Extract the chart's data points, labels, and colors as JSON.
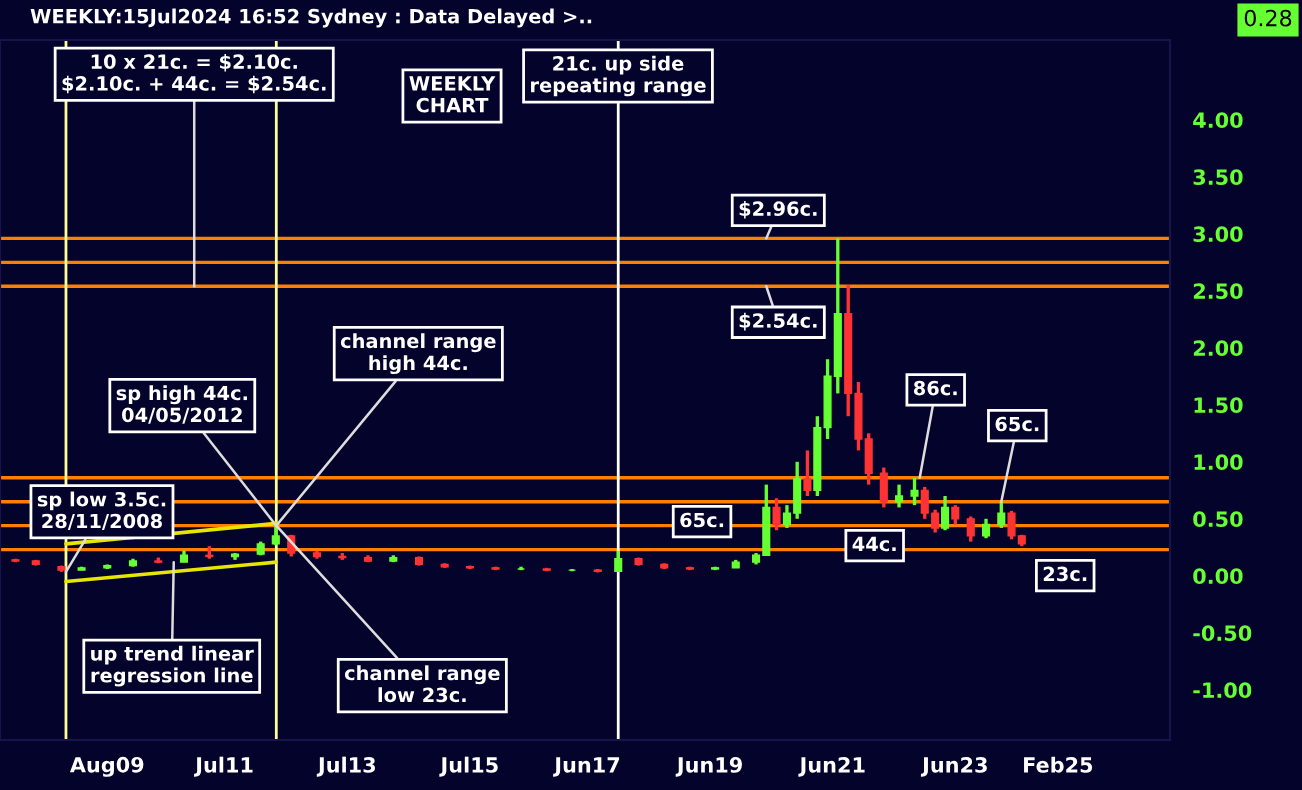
{
  "chart_data": {
    "type": "candlestick",
    "title": "WEEKLY:15Jul2024 16:52 Sydney : Data Delayed >..",
    "x": [
      "2008-02",
      "2008-06",
      "2008-11",
      "2009-03",
      "2009-08",
      "2010-01",
      "2010-06",
      "2010-11",
      "2011-04",
      "2011-09",
      "2012-02",
      "2012-05",
      "2012-08",
      "2013-01",
      "2013-06",
      "2013-11",
      "2014-04",
      "2014-09",
      "2015-02",
      "2015-07",
      "2015-12",
      "2016-05",
      "2016-10",
      "2017-03",
      "2017-08",
      "2017-12",
      "2018-04",
      "2018-09",
      "2019-02",
      "2019-07",
      "2019-11",
      "2020-03",
      "2020-05",
      "2020-07",
      "2020-09",
      "2020-11",
      "2021-01",
      "2021-03",
      "2021-05",
      "2021-07",
      "2021-09",
      "2021-11",
      "2022-01",
      "2022-04",
      "2022-07",
      "2022-10",
      "2022-12",
      "2023-02",
      "2023-04",
      "2023-06",
      "2023-09",
      "2023-12",
      "2024-03",
      "2024-05",
      "2024-07"
    ],
    "ohlc": [
      [
        0.14,
        0.15,
        0.12,
        0.13
      ],
      [
        0.13,
        0.14,
        0.09,
        0.1
      ],
      [
        0.08,
        0.09,
        0.035,
        0.05
      ],
      [
        0.05,
        0.08,
        0.05,
        0.07
      ],
      [
        0.07,
        0.1,
        0.06,
        0.09
      ],
      [
        0.09,
        0.15,
        0.08,
        0.13
      ],
      [
        0.13,
        0.16,
        0.11,
        0.12
      ],
      [
        0.12,
        0.22,
        0.12,
        0.18
      ],
      [
        0.18,
        0.26,
        0.15,
        0.17
      ],
      [
        0.17,
        0.2,
        0.14,
        0.19
      ],
      [
        0.19,
        0.3,
        0.18,
        0.28
      ],
      [
        0.28,
        0.44,
        0.27,
        0.35
      ],
      [
        0.35,
        0.36,
        0.17,
        0.2
      ],
      [
        0.2,
        0.22,
        0.15,
        0.17
      ],
      [
        0.17,
        0.2,
        0.14,
        0.16
      ],
      [
        0.16,
        0.18,
        0.12,
        0.13
      ],
      [
        0.13,
        0.18,
        0.12,
        0.16
      ],
      [
        0.16,
        0.17,
        0.09,
        0.1
      ],
      [
        0.1,
        0.11,
        0.07,
        0.08
      ],
      [
        0.08,
        0.09,
        0.06,
        0.07
      ],
      [
        0.07,
        0.08,
        0.05,
        0.06
      ],
      [
        0.06,
        0.08,
        0.05,
        0.06
      ],
      [
        0.06,
        0.07,
        0.04,
        0.05
      ],
      [
        0.05,
        0.06,
        0.04,
        0.05
      ],
      [
        0.05,
        0.06,
        0.03,
        0.04
      ],
      [
        0.04,
        0.22,
        0.04,
        0.15
      ],
      [
        0.15,
        0.16,
        0.09,
        0.1
      ],
      [
        0.1,
        0.11,
        0.06,
        0.07
      ],
      [
        0.07,
        0.08,
        0.05,
        0.06
      ],
      [
        0.06,
        0.08,
        0.05,
        0.07
      ],
      [
        0.07,
        0.14,
        0.07,
        0.12
      ],
      [
        0.12,
        0.2,
        0.1,
        0.18
      ],
      [
        0.18,
        0.8,
        0.18,
        0.6
      ],
      [
        0.6,
        0.68,
        0.4,
        0.45
      ],
      [
        0.45,
        0.62,
        0.42,
        0.55
      ],
      [
        0.55,
        1.0,
        0.5,
        0.85
      ],
      [
        0.85,
        1.1,
        0.7,
        0.75
      ],
      [
        0.75,
        1.4,
        0.7,
        1.3
      ],
      [
        1.3,
        1.9,
        1.2,
        1.75
      ],
      [
        1.75,
        2.96,
        1.6,
        2.3
      ],
      [
        2.3,
        2.55,
        1.4,
        1.6
      ],
      [
        1.6,
        1.7,
        1.1,
        1.2
      ],
      [
        1.2,
        1.25,
        0.8,
        0.9
      ],
      [
        0.9,
        0.95,
        0.6,
        0.65
      ],
      [
        0.65,
        0.8,
        0.6,
        0.7
      ],
      [
        0.7,
        0.86,
        0.62,
        0.75
      ],
      [
        0.75,
        0.78,
        0.5,
        0.55
      ],
      [
        0.55,
        0.58,
        0.38,
        0.42
      ],
      [
        0.42,
        0.7,
        0.4,
        0.6
      ],
      [
        0.6,
        0.62,
        0.45,
        0.5
      ],
      [
        0.5,
        0.52,
        0.3,
        0.35
      ],
      [
        0.35,
        0.5,
        0.33,
        0.45
      ],
      [
        0.45,
        0.65,
        0.42,
        0.55
      ],
      [
        0.55,
        0.57,
        0.32,
        0.35
      ],
      [
        0.35,
        0.36,
        0.26,
        0.28
      ]
    ],
    "colors": [
      "#ff3333",
      "#ff3333",
      "#ff3333",
      "#66ff33",
      "#66ff33",
      "#66ff33",
      "#ff3333",
      "#66ff33",
      "#ff3333",
      "#66ff33",
      "#66ff33",
      "#66ff33",
      "#ff3333",
      "#ff3333",
      "#ff3333",
      "#ff3333",
      "#66ff33",
      "#ff3333",
      "#ff3333",
      "#ff3333",
      "#ff3333",
      "#66ff33",
      "#ff3333",
      "#66ff33",
      "#ff3333",
      "#66ff33",
      "#ff3333",
      "#ff3333",
      "#ff3333",
      "#66ff33",
      "#66ff33",
      "#66ff33",
      "#66ff33",
      "#ff3333",
      "#66ff33",
      "#66ff33",
      "#ff3333",
      "#66ff33",
      "#66ff33",
      "#66ff33",
      "#ff3333",
      "#ff3333",
      "#ff3333",
      "#ff3333",
      "#66ff33",
      "#66ff33",
      "#ff3333",
      "#ff3333",
      "#66ff33",
      "#ff3333",
      "#ff3333",
      "#66ff33",
      "#66ff33",
      "#ff3333",
      "#ff3333"
    ],
    "series": [
      {
        "type": "line",
        "color": "#e6e600",
        "x": [
          "2008-11-28",
          "2012-05-04"
        ],
        "values": [
          0.28,
          0.46
        ]
      },
      {
        "type": "line",
        "color": "#e6e600",
        "x": [
          "2008-11-28",
          "2012-05-04"
        ],
        "values": [
          -0.05,
          0.12
        ]
      }
    ],
    "ref_lines": [
      {
        "axis": "y",
        "value": 2.96,
        "color": "#ff8000"
      },
      {
        "axis": "y",
        "value": 2.75,
        "color": "#ff8000"
      },
      {
        "axis": "y",
        "value": 2.54,
        "color": "#ff8000"
      },
      {
        "axis": "y",
        "value": 0.86,
        "color": "#ff8000"
      },
      {
        "axis": "y",
        "value": 0.65,
        "color": "#ff8000"
      },
      {
        "axis": "y",
        "value": 0.44,
        "color": "#ff8000"
      },
      {
        "axis": "y",
        "value": 0.23,
        "color": "#ff8000"
      },
      {
        "axis": "x",
        "value": "2008-11-28",
        "color": "#ffff99"
      },
      {
        "axis": "x",
        "value": "2012-05-04",
        "color": "#ffff99"
      },
      {
        "axis": "x",
        "value": "2017-12",
        "color": "#ffffff"
      }
    ],
    "annotations": [
      {
        "text": "10 x 21c. = $2.10c.\n$2.10c. + 44c. = $2.54c.",
        "x": "2011-01",
        "y": 2.54
      },
      "WEEKLY\nCHART",
      "21c. up side\nrepeating range",
      {
        "text": "channel range\nhigh 44c.",
        "x": "2012-05-04",
        "y": 0.44
      },
      {
        "text": "sp high 44c.\n04/05/2012",
        "x": "2012-05-04",
        "y": 0.44
      },
      {
        "text": "sp low 3.5c.\n28/11/2008",
        "x": "2008-11-28",
        "y": 0.035
      },
      {
        "text": "up trend linear\nregression line",
        "x": "2010-09",
        "y": 0.12
      },
      {
        "text": "channel range\nlow 23c.",
        "x": "2012-05-04",
        "y": 0.44
      },
      {
        "text": "$2.96c.",
        "x": "2020-05",
        "y": 2.96
      },
      {
        "text": "$2.54c.",
        "x": "2020-05",
        "y": 2.54
      },
      {
        "text": "86c.",
        "x": "2022-11",
        "y": 0.86
      },
      {
        "text": "65c.",
        "x": "2019-06",
        "y": 0.65
      },
      {
        "text": "44c.",
        "x": "2022-01",
        "y": 0.44
      },
      {
        "text": "65c.",
        "x": "2024-03",
        "y": 0.65
      },
      {
        "text": "23c.",
        "x": "2024-10",
        "y": 0.23
      },
      "0.28"
    ],
    "xlim": [
      "2007-11",
      "2026-12"
    ],
    "xticks": [
      {
        "value": "2009-08",
        "label": "Aug09"
      },
      {
        "value": "2011-07",
        "label": "Jul11"
      },
      {
        "value": "2013-07",
        "label": "Jul13"
      },
      {
        "value": "2015-07",
        "label": "Jul15"
      },
      {
        "value": "2017-06",
        "label": "Jun17"
      },
      {
        "value": "2019-06",
        "label": "Jun19"
      },
      {
        "value": "2021-06",
        "label": "Jun21"
      },
      {
        "value": "2023-06",
        "label": "Jun23"
      },
      {
        "value": "2025-02",
        "label": "Feb25"
      }
    ],
    "ylim": [
      -1.44,
      4.7
    ],
    "yticks": [
      {
        "value": -1,
        "label": "-1.00"
      },
      {
        "value": -0.5,
        "label": "-0.50"
      },
      {
        "value": 0,
        "label": "0.00"
      },
      {
        "value": 0.5,
        "label": "0.50"
      },
      {
        "value": 1,
        "label": "1.00"
      },
      {
        "value": 1.5,
        "label": "1.50"
      },
      {
        "value": 2,
        "label": "2.00"
      },
      {
        "value": 2.5,
        "label": "2.50"
      },
      {
        "value": 3,
        "label": "3.00"
      },
      {
        "value": 3.5,
        "label": "3.50"
      },
      {
        "value": 4,
        "label": "4.00"
      }
    ]
  }
}
